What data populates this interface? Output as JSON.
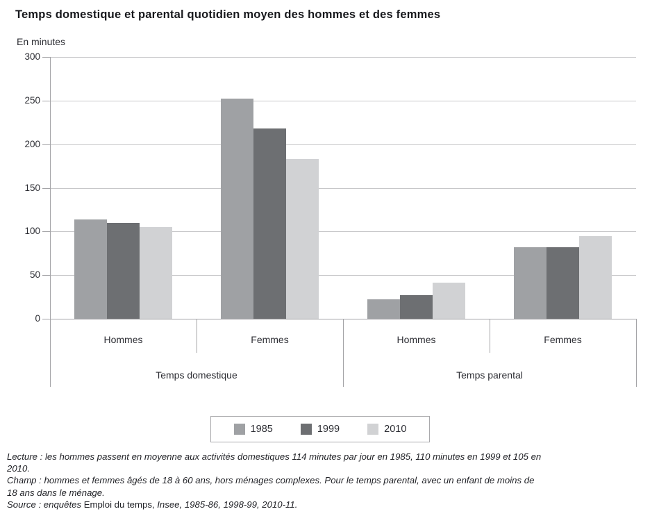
{
  "header": {
    "title": "Temps domestique et parental quotidien moyen des hommes et des femmes",
    "unit_label": "En minutes"
  },
  "chart_data": {
    "type": "bar",
    "title": "Temps domestique et parental quotidien moyen des hommes et des femmes",
    "ylabel": "En minutes",
    "xlabel": "",
    "ylim": [
      0,
      300
    ],
    "yticks": [
      0,
      50,
      100,
      150,
      200,
      250,
      300
    ],
    "grid": true,
    "legend_position": "bottom-center",
    "group_labels": [
      "Temps domestique",
      "Temps parental"
    ],
    "categories": [
      "Hommes",
      "Femmes",
      "Hommes",
      "Femmes"
    ],
    "series": [
      {
        "name": "1985",
        "color": "#9fa1a4",
        "values": [
          114,
          252,
          22,
          82
        ]
      },
      {
        "name": "1999",
        "color": "#6d6f72",
        "values": [
          110,
          218,
          27,
          82
        ]
      },
      {
        "name": "2010",
        "color": "#d1d2d4",
        "values": [
          105,
          183,
          41,
          95
        ]
      }
    ]
  },
  "colors": {
    "bar_1985": "#9fa1a4",
    "bar_1999": "#6d6f72",
    "bar_2010": "#d1d2d4",
    "gridline": "#c6c6c8",
    "axis": "#a3a3a6",
    "title_text": "#17181c",
    "body_text": "#2c2d33",
    "legend_border": "#a9a9ac"
  },
  "notes": {
    "lines": [
      {
        "parts": [
          {
            "text": "Lecture : les hommes passent en moyenne aux activités domestiques 114 minutes par jour en 1985, 110 minutes en 1999 et 105 en",
            "style": "italic"
          }
        ]
      },
      {
        "parts": [
          {
            "text": "2010.",
            "style": "italic"
          }
        ]
      },
      {
        "parts": [
          {
            "text": "Champ : hommes et femmes âgés de 18 à 60 ans, hors ménages complexes. Pour le temps parental, avec un enfant de moins de",
            "style": "italic"
          }
        ]
      },
      {
        "parts": [
          {
            "text": "18 ans dans le ménage.",
            "style": "italic"
          }
        ]
      },
      {
        "parts": [
          {
            "text": "Source : enquêtes ",
            "style": "italic"
          },
          {
            "text": "Emploi du temps, ",
            "style": "normal"
          },
          {
            "text": "Insee, 1985-86, 1998-99, 2010-11.",
            "style": "italic"
          }
        ]
      }
    ]
  }
}
